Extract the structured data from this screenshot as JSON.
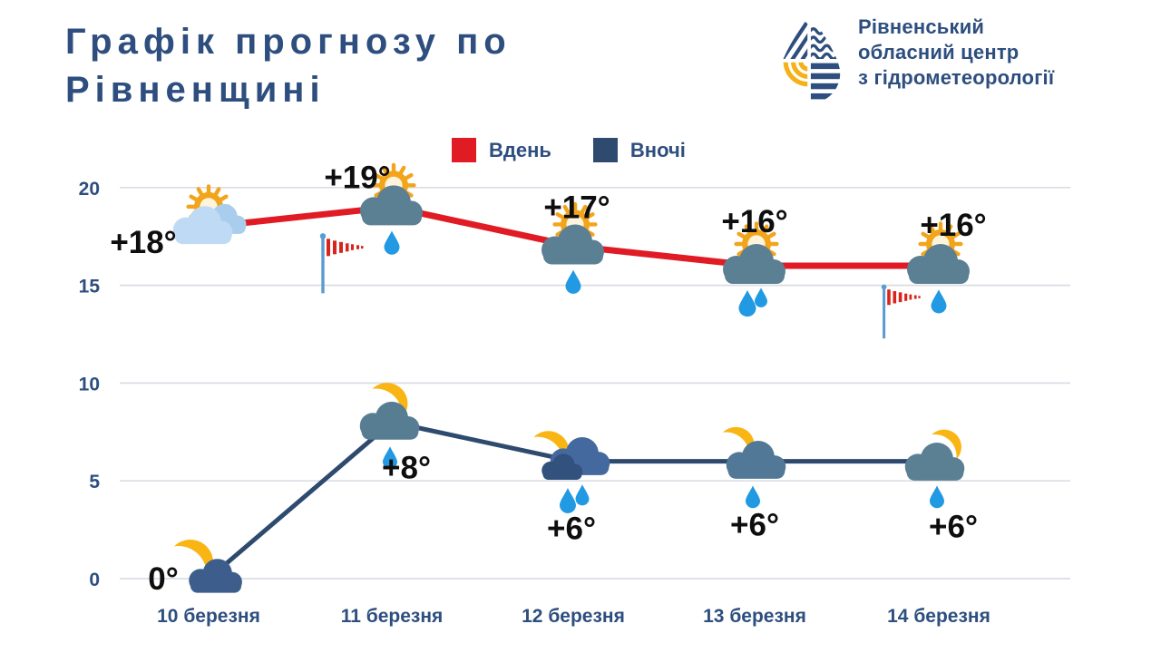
{
  "header": {
    "title_line1": "Графік прогнозу по",
    "title_line2": "Рівненщині",
    "logo": {
      "org_line1": "Рівненський",
      "org_line2": "обласний центр",
      "org_line3": "з гідрометеорології"
    }
  },
  "legend": {
    "day_label": "Вдень",
    "night_label": "Вночі",
    "day_color": "#E01B24",
    "night_color": "#2E4A6E"
  },
  "chart_data": {
    "type": "line",
    "title": "Графік прогнозу по Рівненщині",
    "xlabel": "",
    "ylabel": "",
    "categories": [
      "10 березня",
      "11 березня",
      "12 березня",
      "13 березня",
      "14 березня"
    ],
    "series": [
      {
        "name": "Вдень",
        "color": "#E01B24",
        "values": [
          18,
          19,
          17,
          16,
          16
        ],
        "labels": [
          "+18°",
          "+19°",
          "+17°",
          "+16°",
          "+16°"
        ],
        "icons": [
          "sun-clouds",
          "sun-rain-1",
          "sun-rain-1",
          "sun-rain-2",
          "sun-rain-1"
        ],
        "windsock": [
          false,
          true,
          false,
          false,
          true
        ]
      },
      {
        "name": "Вночі",
        "color": "#2E4A6E",
        "values": [
          0,
          8,
          6,
          6,
          6
        ],
        "labels": [
          "0°",
          "+8°",
          "+6°",
          "+6°",
          "+6°"
        ],
        "icons": [
          "moon-cloud",
          "moon-rain-1",
          "moon-rain-2",
          "moon-rain-1",
          "moon-rain-1"
        ],
        "windsock": [
          false,
          false,
          false,
          false,
          false
        ]
      }
    ],
    "yticks": [
      20,
      15,
      10,
      5,
      0
    ],
    "ylim": [
      0,
      20
    ],
    "grid": true,
    "legend_position": "top-center"
  }
}
